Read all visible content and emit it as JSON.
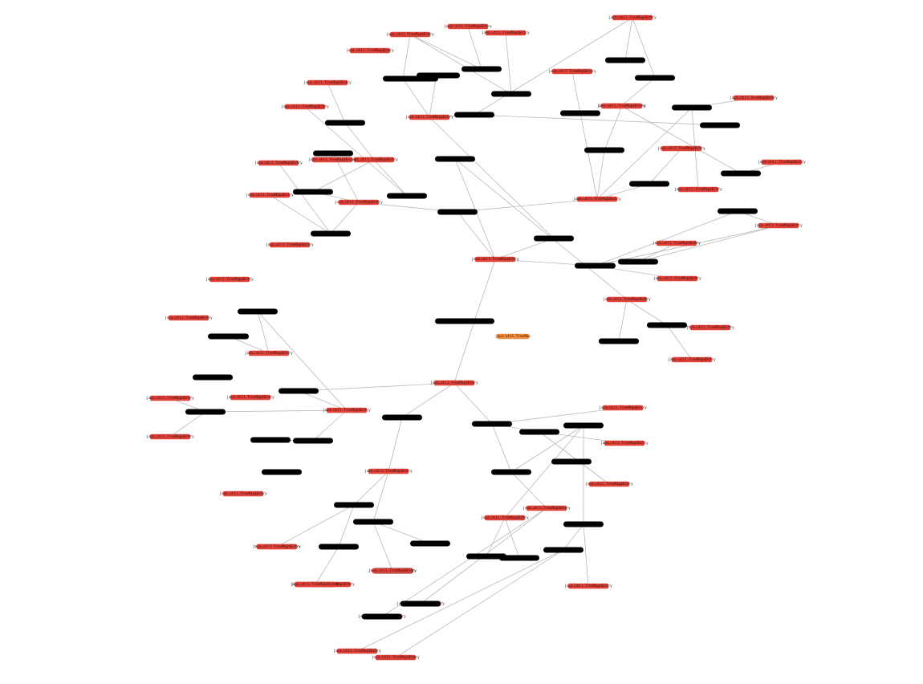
{
  "graph": {
    "entry_label": "java.util.TreeMap$Entry",
    "root_label": "java.util.TreeMap",
    "colors": {
      "entry": "#e0423a",
      "root": "#ee8a3c",
      "null": "#000000",
      "edge": "#b9b9b9"
    }
  },
  "nodes": [
    {
      "id": "root",
      "kind": "root"
    },
    {
      "id": "n1",
      "kind": "null"
    },
    {
      "id": "e1",
      "kind": "entry"
    },
    {
      "id": "e2",
      "kind": "entry"
    },
    {
      "id": "b3",
      "kind": "null"
    },
    {
      "id": "b4",
      "kind": "null"
    },
    {
      "id": "b5",
      "kind": "null"
    },
    {
      "id": "b6",
      "kind": "null"
    },
    {
      "id": "e7",
      "kind": "entry"
    },
    {
      "id": "b8",
      "kind": "null"
    },
    {
      "id": "b9",
      "kind": "null"
    },
    {
      "id": "e10",
      "kind": "entry"
    },
    {
      "id": "b11",
      "kind": "null"
    },
    {
      "id": "e12",
      "kind": "entry"
    },
    {
      "id": "e13",
      "kind": "entry"
    },
    {
      "id": "b14",
      "kind": "null"
    },
    {
      "id": "b15",
      "kind": "null"
    },
    {
      "id": "b16",
      "kind": "null"
    },
    {
      "id": "e17",
      "kind": "entry"
    },
    {
      "id": "e18",
      "kind": "entry"
    },
    {
      "id": "e19",
      "kind": "entry"
    },
    {
      "id": "e20",
      "kind": "entry"
    },
    {
      "id": "b21",
      "kind": "null"
    },
    {
      "id": "e22",
      "kind": "entry"
    },
    {
      "id": "e23",
      "kind": "entry"
    },
    {
      "id": "e24",
      "kind": "entry"
    },
    {
      "id": "b25",
      "kind": "null"
    },
    {
      "id": "b26",
      "kind": "null"
    },
    {
      "id": "e27",
      "kind": "entry"
    },
    {
      "id": "e28",
      "kind": "entry"
    },
    {
      "id": "e29",
      "kind": "entry"
    },
    {
      "id": "b30",
      "kind": "null"
    },
    {
      "id": "b31",
      "kind": "null"
    },
    {
      "id": "e32",
      "kind": "entry"
    },
    {
      "id": "b33",
      "kind": "null"
    },
    {
      "id": "b34",
      "kind": "null"
    },
    {
      "id": "e35",
      "kind": "entry"
    },
    {
      "id": "e36",
      "kind": "entry"
    },
    {
      "id": "b37",
      "kind": "null"
    },
    {
      "id": "b38",
      "kind": "null"
    },
    {
      "id": "e39",
      "kind": "entry"
    },
    {
      "id": "b40",
      "kind": "null"
    },
    {
      "id": "e41",
      "kind": "entry"
    },
    {
      "id": "b42",
      "kind": "null"
    },
    {
      "id": "b43",
      "kind": "null"
    },
    {
      "id": "e44",
      "kind": "entry"
    },
    {
      "id": "b45",
      "kind": "null"
    },
    {
      "id": "e46",
      "kind": "entry"
    },
    {
      "id": "b47",
      "kind": "null"
    },
    {
      "id": "b48",
      "kind": "null"
    },
    {
      "id": "e49",
      "kind": "entry"
    },
    {
      "id": "e50",
      "kind": "entry"
    },
    {
      "id": "e51",
      "kind": "entry"
    },
    {
      "id": "b52",
      "kind": "null"
    },
    {
      "id": "b53",
      "kind": "null"
    },
    {
      "id": "b54",
      "kind": "null"
    },
    {
      "id": "e55",
      "kind": "entry"
    },
    {
      "id": "e56",
      "kind": "entry"
    },
    {
      "id": "e57",
      "kind": "entry"
    },
    {
      "id": "e58",
      "kind": "entry"
    },
    {
      "id": "b59",
      "kind": "null"
    },
    {
      "id": "b60",
      "kind": "null"
    },
    {
      "id": "e61",
      "kind": "entry"
    },
    {
      "id": "b62",
      "kind": "null"
    },
    {
      "id": "e63",
      "kind": "entry"
    },
    {
      "id": "b64",
      "kind": "null"
    },
    {
      "id": "b65",
      "kind": "null"
    },
    {
      "id": "b66",
      "kind": "null"
    },
    {
      "id": "e67",
      "kind": "entry"
    },
    {
      "id": "e68",
      "kind": "entry"
    },
    {
      "id": "b69",
      "kind": "null"
    },
    {
      "id": "b70",
      "kind": "null"
    },
    {
      "id": "b71",
      "kind": "null"
    },
    {
      "id": "e72",
      "kind": "entry"
    },
    {
      "id": "b73",
      "kind": "null"
    },
    {
      "id": "e74",
      "kind": "entry"
    },
    {
      "id": "e75",
      "kind": "entry"
    },
    {
      "id": "e76",
      "kind": "entry"
    },
    {
      "id": "b77",
      "kind": "null"
    },
    {
      "id": "b78",
      "kind": "null"
    },
    {
      "id": "b79",
      "kind": "null"
    },
    {
      "id": "b80",
      "kind": "null"
    },
    {
      "id": "b81",
      "kind": "null"
    },
    {
      "id": "e82",
      "kind": "entry"
    },
    {
      "id": "e83",
      "kind": "entry"
    },
    {
      "id": "e84",
      "kind": "entry"
    },
    {
      "id": "e85",
      "kind": "entry"
    },
    {
      "id": "b86",
      "kind": "null"
    },
    {
      "id": "b87",
      "kind": "null"
    },
    {
      "id": "b88",
      "kind": "null"
    },
    {
      "id": "b89",
      "kind": "null"
    },
    {
      "id": "e90",
      "kind": "entry"
    },
    {
      "id": "e91",
      "kind": "entry"
    },
    {
      "id": "e92",
      "kind": "entry"
    },
    {
      "id": "e93",
      "kind": "entry"
    },
    {
      "id": "e94",
      "kind": "entry"
    },
    {
      "id": "e95",
      "kind": "entry"
    }
  ],
  "edges": [
    [
      "n1",
      "e1"
    ],
    [
      "n1",
      "e2"
    ],
    [
      "e1",
      "b3"
    ],
    [
      "e1",
      "b4"
    ],
    [
      "e1",
      "b5"
    ],
    [
      "e1",
      "b6"
    ],
    [
      "b3",
      "e7"
    ],
    [
      "b3",
      "e12"
    ],
    [
      "e7",
      "b8"
    ],
    [
      "e7",
      "b9"
    ],
    [
      "e7",
      "b11"
    ],
    [
      "b8",
      "e10"
    ],
    [
      "b9",
      "e13"
    ],
    [
      "b11",
      "e17"
    ],
    [
      "b11",
      "e18"
    ],
    [
      "e12",
      "b14"
    ],
    [
      "e12",
      "b15"
    ],
    [
      "e12",
      "b16"
    ],
    [
      "b14",
      "e19"
    ],
    [
      "b15",
      "e20"
    ],
    [
      "b16",
      "e22"
    ],
    [
      "b16",
      "e23"
    ],
    [
      "e12",
      "b21"
    ],
    [
      "b21",
      "e24"
    ],
    [
      "e10",
      "b25"
    ],
    [
      "e10",
      "b26"
    ],
    [
      "b25",
      "e27"
    ],
    [
      "b26",
      "e28"
    ],
    [
      "b4",
      "e29"
    ],
    [
      "e29",
      "b30"
    ],
    [
      "e29",
      "b31"
    ],
    [
      "b30",
      "e32"
    ],
    [
      "e32",
      "b33"
    ],
    [
      "e32",
      "b34"
    ],
    [
      "b33",
      "e35"
    ],
    [
      "b34",
      "e36"
    ],
    [
      "e29",
      "b37"
    ],
    [
      "b37",
      "e39"
    ],
    [
      "e39",
      "b38"
    ],
    [
      "e39",
      "b40"
    ],
    [
      "b40",
      "e41"
    ],
    [
      "b37",
      "b42"
    ],
    [
      "e41",
      "b43"
    ],
    [
      "b43",
      "e44"
    ],
    [
      "b5",
      "b45"
    ],
    [
      "b45",
      "e46"
    ],
    [
      "e46",
      "b47"
    ],
    [
      "e46",
      "b48"
    ],
    [
      "b47",
      "e49"
    ],
    [
      "b48",
      "e50"
    ],
    [
      "b6",
      "e51"
    ],
    [
      "e51",
      "b52"
    ],
    [
      "e51",
      "b53"
    ],
    [
      "b53",
      "e55"
    ],
    [
      "b53",
      "e56"
    ],
    [
      "b52",
      "b54"
    ],
    [
      "e2",
      "b59"
    ],
    [
      "e2",
      "b60"
    ],
    [
      "b59",
      "e61"
    ],
    [
      "e61",
      "b62"
    ],
    [
      "e61",
      "b64"
    ],
    [
      "b62",
      "e63"
    ],
    [
      "b62",
      "b65"
    ],
    [
      "b65",
      "e67"
    ],
    [
      "b64",
      "e68"
    ],
    [
      "b64",
      "b66"
    ],
    [
      "b60",
      "e72"
    ],
    [
      "e72",
      "b69"
    ],
    [
      "e72",
      "b70"
    ],
    [
      "b69",
      "b71"
    ],
    [
      "b70",
      "e74"
    ],
    [
      "b70",
      "e75"
    ],
    [
      "e72",
      "b73"
    ],
    [
      "b73",
      "e76"
    ],
    [
      "e76",
      "b77"
    ],
    [
      "e2",
      "b78"
    ],
    [
      "b78",
      "b79"
    ],
    [
      "b78",
      "e82"
    ],
    [
      "b79",
      "e83"
    ],
    [
      "b79",
      "e84"
    ],
    [
      "b78",
      "b80"
    ],
    [
      "b80",
      "e85"
    ],
    [
      "b80",
      "b81"
    ],
    [
      "b81",
      "e90"
    ],
    [
      "b81",
      "b86"
    ],
    [
      "e90",
      "b87"
    ],
    [
      "e90",
      "b88"
    ],
    [
      "b86",
      "e91"
    ],
    [
      "b86",
      "b89"
    ],
    [
      "b89",
      "e92"
    ],
    [
      "b89",
      "e93"
    ],
    [
      "e85",
      "e94"
    ],
    [
      "e85",
      "e95"
    ]
  ]
}
